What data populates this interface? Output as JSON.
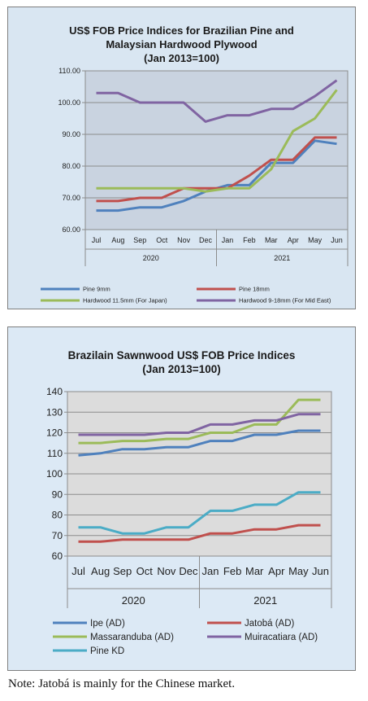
{
  "chart_data": [
    {
      "type": "line",
      "title_lines": [
        "US$ FOB Price Indices for Brazilian Pine and",
        "Malaysian Hardwood Plywood",
        "(Jan 2013=100)"
      ],
      "categories": [
        "Jul",
        "Aug",
        "Sep",
        "Oct",
        "Nov",
        "Dec",
        "Jan",
        "Feb",
        "Mar",
        "Apr",
        "May",
        "Jun"
      ],
      "year_groups": [
        {
          "label": "2020",
          "count": 6
        },
        {
          "label": "2021",
          "count": 6
        }
      ],
      "ylim": [
        60,
        110
      ],
      "yticks": [
        "60.00",
        "70.00",
        "80.00",
        "90.00",
        "100.00",
        "110.00"
      ],
      "grid": true,
      "legend_position": "bottom",
      "series": [
        {
          "name": "Pine 9mm",
          "color": "#4f81bd",
          "values": [
            66,
            66,
            67,
            67,
            69,
            72,
            74,
            74,
            81,
            81,
            88,
            87
          ]
        },
        {
          "name": "Pine 18mm",
          "color": "#c0504d",
          "values": [
            69,
            69,
            70,
            70,
            73,
            73,
            73,
            77,
            82,
            82,
            89,
            89
          ]
        },
        {
          "name": "Hardwood 11.5mm (For Japan)",
          "color": "#9bbb59",
          "values": [
            73,
            73,
            73,
            73,
            73,
            72,
            73,
            73,
            79,
            91,
            95,
            104
          ]
        },
        {
          "name": "Hardwood 9-18mm (For Mid East)",
          "color": "#8064a2",
          "values": [
            103,
            103,
            100,
            100,
            100,
            94,
            96,
            96,
            98,
            98,
            102,
            107
          ]
        }
      ]
    },
    {
      "type": "line",
      "title_lines": [
        "Brazilain Sawnwood US$ FOB Price Indices",
        "(Jan 2013=100)"
      ],
      "categories": [
        "Jul",
        "Aug",
        "Sep",
        "Oct",
        "Nov",
        "Dec",
        "Jan",
        "Feb",
        "Mar",
        "Apr",
        "May",
        "Jun"
      ],
      "year_groups": [
        {
          "label": "2020",
          "count": 6
        },
        {
          "label": "2021",
          "count": 6
        }
      ],
      "ylim": [
        60,
        140
      ],
      "yticks": [
        "60",
        "70",
        "80",
        "90",
        "100",
        "110",
        "120",
        "130",
        "140"
      ],
      "grid": true,
      "legend_position": "bottom",
      "series": [
        {
          "name": "Ipe (AD)",
          "color": "#4f81bd",
          "values": [
            109,
            110,
            112,
            112,
            113,
            113,
            116,
            116,
            119,
            119,
            121,
            121
          ]
        },
        {
          "name": "Jatobá (AD)",
          "color": "#c0504d",
          "values": [
            67,
            67,
            68,
            68,
            68,
            68,
            71,
            71,
            73,
            73,
            75,
            75
          ]
        },
        {
          "name": "Massaranduba (AD)",
          "color": "#9bbb59",
          "values": [
            115,
            115,
            116,
            116,
            117,
            117,
            120,
            120,
            124,
            124,
            136,
            136
          ]
        },
        {
          "name": "Muiracatiara (AD)",
          "color": "#8064a2",
          "values": [
            119,
            119,
            119,
            119,
            120,
            120,
            124,
            124,
            126,
            126,
            129,
            129
          ]
        },
        {
          "name": "Pine KD",
          "color": "#4bacc6",
          "values": [
            74,
            74,
            71,
            71,
            74,
            74,
            82,
            82,
            85,
            85,
            91,
            91
          ]
        }
      ]
    }
  ],
  "note": "Note: Jatobá is mainly for the Chinese market."
}
